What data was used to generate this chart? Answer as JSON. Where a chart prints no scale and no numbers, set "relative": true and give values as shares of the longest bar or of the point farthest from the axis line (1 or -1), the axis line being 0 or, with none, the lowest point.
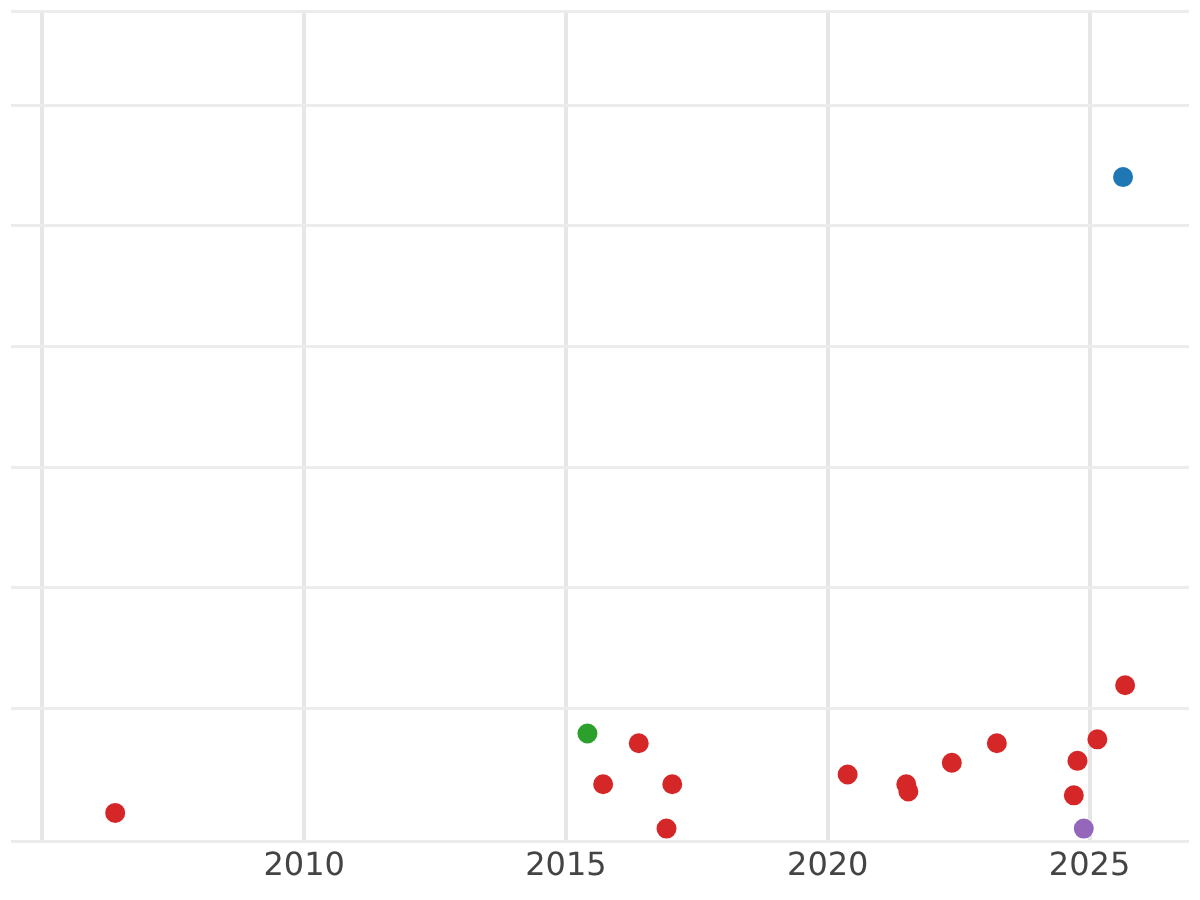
{
  "chart_data": {
    "type": "scatter",
    "relative": true,
    "grid": true,
    "legend": false,
    "marker": "circle",
    "xlim": [
      2004.4,
      2026.9
    ],
    "xticks": [
      {
        "value": 2005,
        "label": null
      },
      2010,
      2015,
      2020,
      2025
    ],
    "series": [
      {
        "color": "#d62728",
        "x": [
          2006.39,
          2015.71,
          2016.39,
          2017.03,
          2016.92,
          2020.38,
          2021.5,
          2021.54,
          2022.37,
          2023.23,
          2024.7,
          2024.77,
          2025.15,
          2025.68
        ],
        "values": [
          0.024,
          0.068,
          0.131,
          0.068,
          0,
          0.083,
          0.068,
          0.057,
          0.101,
          0.131,
          0.051,
          0.104,
          0.137,
          0.22
        ]
      },
      {
        "color": "#2ca02c",
        "x": [
          2015.41
        ],
        "values": [
          0.146
        ]
      },
      {
        "color": "#1f77b4",
        "x": [
          2025.64
        ],
        "values": [
          1
        ]
      },
      {
        "color": "#9467bd",
        "x": [
          2024.89
        ],
        "values": [
          0
        ]
      }
    ]
  }
}
